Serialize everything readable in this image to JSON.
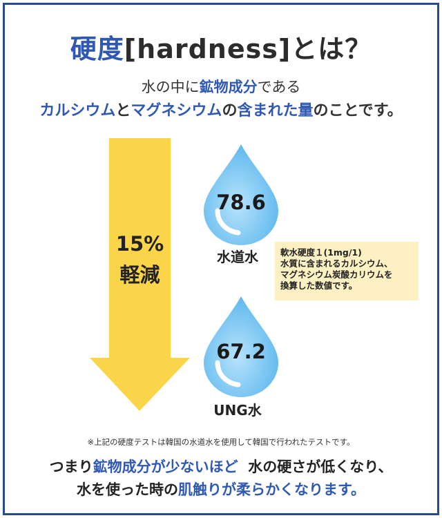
{
  "title": {
    "part1": "硬度",
    "part2": "[hardness]",
    "part3": "とは？"
  },
  "intro": {
    "line1_a": "水の中に",
    "line1_b": "鉱物成分",
    "line1_c": "である",
    "line2_a": "カルシウム",
    "line2_b": "と",
    "line2_c": "マグネシウム",
    "line2_d": "の",
    "line2_e": "含まれた量",
    "line2_f": "のことです。"
  },
  "arrow": {
    "percent": "15%",
    "label": "軽減",
    "color": "#fad54a"
  },
  "drops": [
    {
      "value": "78.6",
      "label": "水道水"
    },
    {
      "value": "67.2",
      "label": "UNG水"
    }
  ],
  "note": {
    "lines": [
      "軟水硬度１(1mg/1)",
      "水質に含まれるカルシウム、",
      "マグネシウム炭酸カリウムを",
      "換算した数値です。"
    ]
  },
  "footnote": "※上記の硬度テストは韓国の水道水を使用して韓国で行われたテストです。",
  "conclusion": {
    "line1_a": "つまり",
    "line1_b": "鉱物成分が少ないほど",
    "line1_c": "水の硬さが低くなり、",
    "line2_a": "水を使った時の",
    "line2_b": "肌触りが柔らかくなります。"
  },
  "colors": {
    "accent_blue": "#2f58b5",
    "frame": "#2a4a8f",
    "drop": "#7ec8f3",
    "note_bg": "#fdf0c2"
  }
}
